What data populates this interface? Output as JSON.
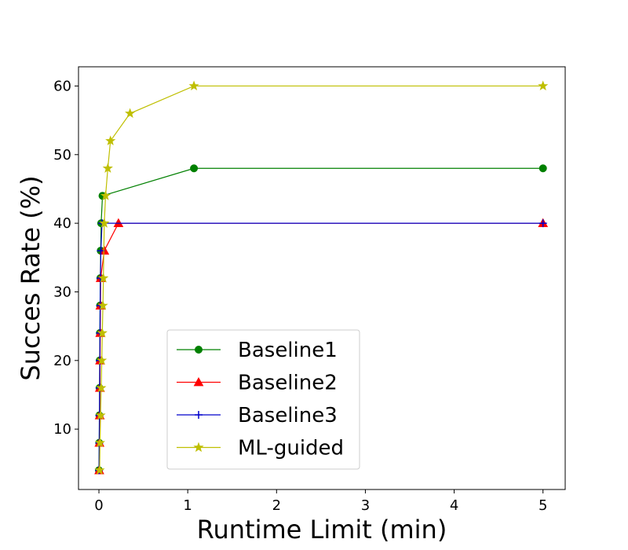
{
  "chart_data": {
    "type": "line",
    "title": "",
    "xlabel": "Runtime Limit (min)",
    "ylabel": "Succes Rate (%)",
    "xlim": [
      -0.23,
      5.25
    ],
    "ylim": [
      1.2,
      62.8
    ],
    "xticks": [
      0,
      1,
      2,
      3,
      4,
      5
    ],
    "yticks": [
      10,
      20,
      30,
      40,
      50,
      60
    ],
    "grid": false,
    "legend_position": "lower-center",
    "series": [
      {
        "name": "Baseline1",
        "color": "#008000",
        "marker": "circle",
        "points": [
          [
            0.0,
            4
          ],
          [
            0.003,
            8
          ],
          [
            0.005,
            12
          ],
          [
            0.007,
            16
          ],
          [
            0.009,
            20
          ],
          [
            0.011,
            24
          ],
          [
            0.013,
            28
          ],
          [
            0.016,
            32
          ],
          [
            0.02,
            36
          ],
          [
            0.025,
            40
          ],
          [
            0.04,
            44
          ],
          [
            1.07,
            48
          ],
          [
            5.0,
            48
          ]
        ]
      },
      {
        "name": "Baseline2",
        "color": "#ff0000",
        "marker": "triangle",
        "points": [
          [
            0.004,
            4
          ],
          [
            0.006,
            8
          ],
          [
            0.009,
            12
          ],
          [
            0.011,
            16
          ],
          [
            0.013,
            20
          ],
          [
            0.015,
            24
          ],
          [
            0.017,
            28
          ],
          [
            0.02,
            32
          ],
          [
            0.06,
            36
          ],
          [
            0.22,
            40
          ],
          [
            5.0,
            40
          ]
        ]
      },
      {
        "name": "Baseline3",
        "color": "#0000cc",
        "marker": "plus",
        "points": [
          [
            0.002,
            4
          ],
          [
            0.004,
            8
          ],
          [
            0.006,
            12
          ],
          [
            0.008,
            16
          ],
          [
            0.01,
            20
          ],
          [
            0.012,
            24
          ],
          [
            0.014,
            28
          ],
          [
            0.017,
            32
          ],
          [
            0.022,
            36
          ],
          [
            0.035,
            40
          ],
          [
            5.0,
            40
          ]
        ]
      },
      {
        "name": "ML-guided",
        "color": "#bfbf00",
        "marker": "star",
        "points": [
          [
            0.008,
            4
          ],
          [
            0.012,
            8
          ],
          [
            0.018,
            12
          ],
          [
            0.025,
            16
          ],
          [
            0.032,
            20
          ],
          [
            0.038,
            24
          ],
          [
            0.045,
            28
          ],
          [
            0.05,
            32
          ],
          [
            0.06,
            40
          ],
          [
            0.075,
            44
          ],
          [
            0.1,
            48
          ],
          [
            0.13,
            52
          ],
          [
            0.35,
            56
          ],
          [
            1.07,
            60
          ],
          [
            5.0,
            60
          ]
        ]
      }
    ]
  }
}
